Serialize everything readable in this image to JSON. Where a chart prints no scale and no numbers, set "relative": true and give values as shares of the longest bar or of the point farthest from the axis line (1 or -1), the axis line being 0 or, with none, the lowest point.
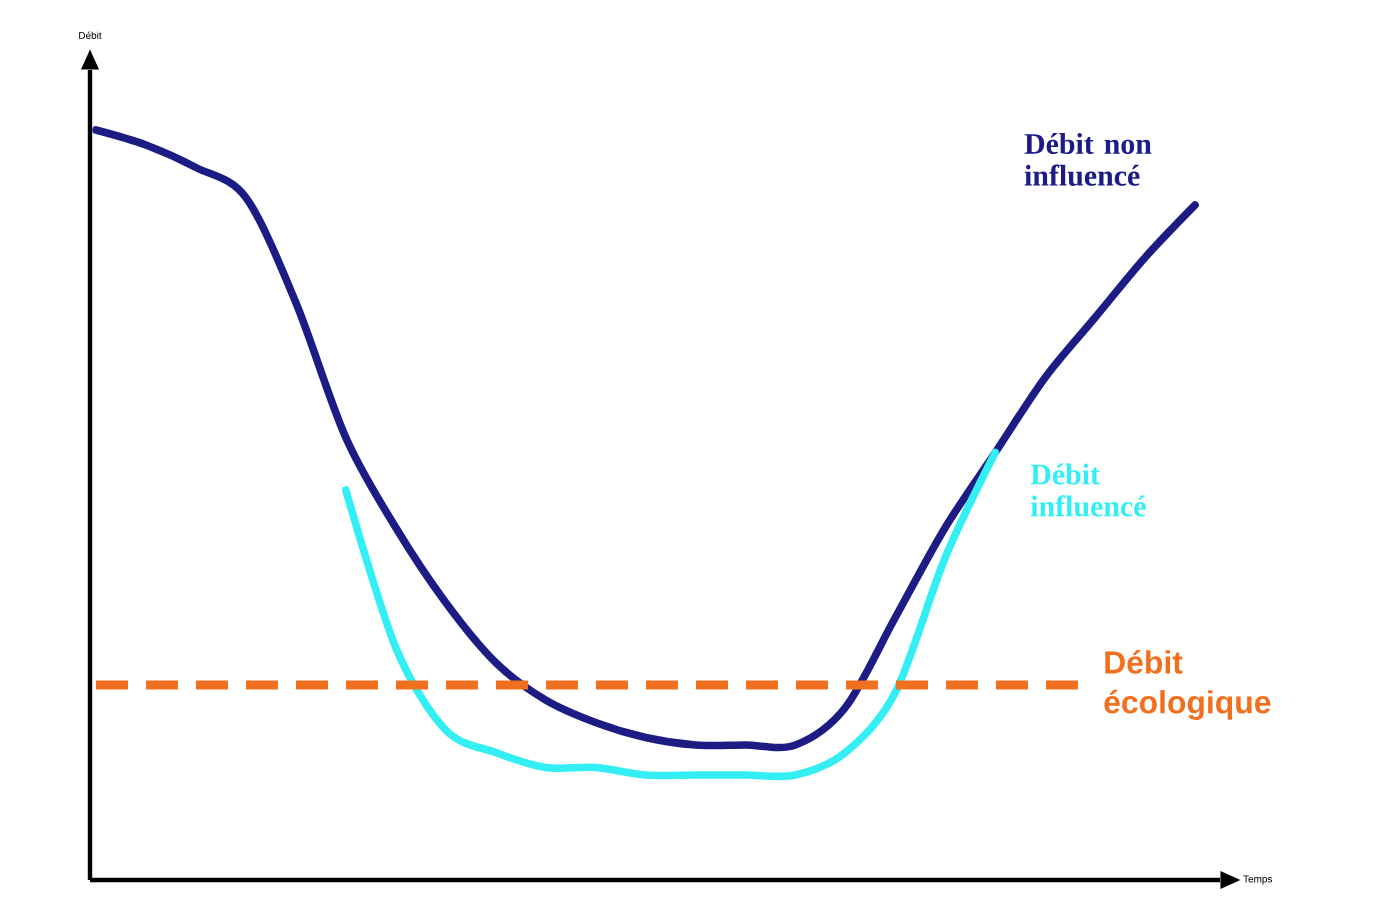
{
  "chart_data": {
    "type": "line",
    "relative": true,
    "xlabel": "Temps",
    "annotations": [
      "Débit"
    ],
    "categories": [
      null,
      null,
      null,
      null,
      null,
      null,
      null,
      null,
      null,
      null,
      null,
      null,
      null,
      null,
      null,
      null,
      null,
      null,
      null,
      null,
      null,
      null,
      null
    ],
    "series": [
      {
        "name": "Débit non influencé",
        "color": "#1c1c84",
        "values": [
          1.0,
          0.98,
          0.95,
          0.91,
          0.77,
          0.59,
          0.47,
          0.37,
          0.29,
          0.24,
          0.21,
          0.19,
          0.18,
          0.18,
          0.18,
          0.23,
          0.35,
          0.47,
          0.57,
          0.67,
          0.75,
          0.83,
          0.9
        ]
      },
      {
        "name": "Débit influencé",
        "color": "#33eef2",
        "values": [
          null,
          null,
          null,
          null,
          null,
          0.52,
          0.31,
          0.2,
          0.17,
          0.15,
          0.15,
          0.14,
          0.14,
          0.14,
          0.14,
          0.17,
          0.25,
          0.43,
          0.57,
          null,
          null,
          null,
          null
        ]
      }
    ],
    "ref_lines": [
      {
        "axis": "y",
        "value": 0.26,
        "label": "Débit écologique",
        "color": "#f07020",
        "line_style": "dashed"
      }
    ]
  }
}
